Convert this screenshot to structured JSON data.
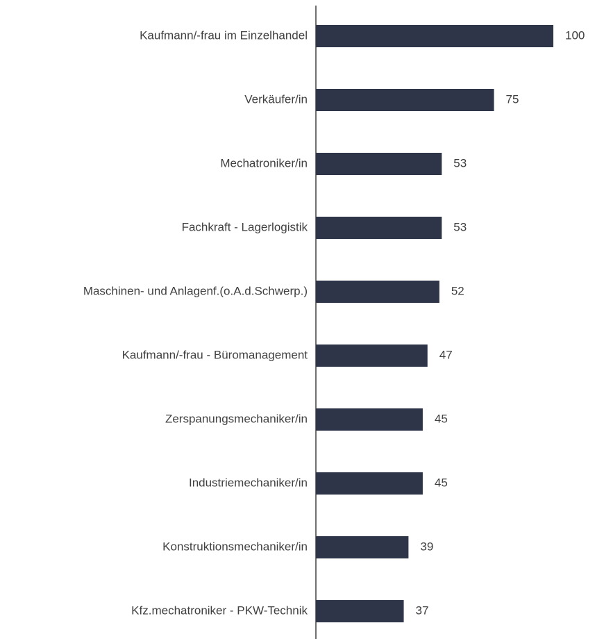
{
  "chart_data": {
    "type": "bar",
    "orientation": "horizontal",
    "categories": [
      "Kaufmann/-frau im Einzelhandel",
      "Verkäufer/in",
      "Mechatroniker/in",
      "Fachkraft - Lagerlogistik",
      "Maschinen- und Anlagenf.(o.A.d.Schwerp.)",
      "Kaufmann/-frau - Büromanagement",
      "Zerspanungsmechaniker/in",
      "Industriemechaniker/in",
      "Konstruktionsmechaniker/in",
      "Kfz.mechatroniker - PKW-Technik"
    ],
    "values": [
      100,
      75,
      53,
      53,
      52,
      47,
      45,
      45,
      39,
      37
    ],
    "color": "#2e3548"
  }
}
